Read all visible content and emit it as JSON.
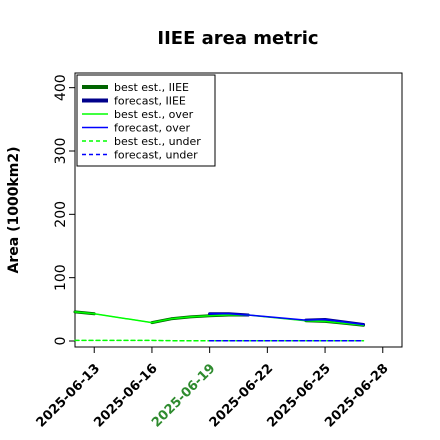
{
  "chart_data": {
    "type": "line",
    "title": "IIEE area metric",
    "ylabel": "Area (1000km2)",
    "xlabel": "",
    "ylim": [
      0,
      420
    ],
    "xlim": [
      "2025-06-12",
      "2025-06-29"
    ],
    "yticks": [
      0,
      100,
      200,
      300,
      400
    ],
    "xticks": [
      {
        "date": "2025-06-13",
        "label": "2025-06-13",
        "color": "#000000"
      },
      {
        "date": "2025-06-16",
        "label": "2025-06-16",
        "color": "#000000"
      },
      {
        "date": "2025-06-19",
        "label": "2025-06-19",
        "color": "#2e8b2e"
      },
      {
        "date": "2025-06-22",
        "label": "2025-06-22",
        "color": "#000000"
      },
      {
        "date": "2025-06-25",
        "label": "2025-06-25",
        "color": "#000000"
      },
      {
        "date": "2025-06-28",
        "label": "2025-06-28",
        "color": "#000000"
      }
    ],
    "legend_position": "top-left",
    "grid": false,
    "series": [
      {
        "name": "best est., IIEE",
        "style": "solid",
        "color": "#006400",
        "width": 3,
        "points": [
          [
            "2025-06-12",
            46
          ],
          [
            "2025-06-13",
            43
          ]
        ]
      },
      {
        "name": "best est., IIEE",
        "style": "solid",
        "color": "#006400",
        "width": 3,
        "legend": false,
        "points": [
          [
            "2025-06-16",
            29
          ],
          [
            "2025-06-17",
            35
          ],
          [
            "2025-06-18",
            38
          ],
          [
            "2025-06-19",
            40
          ],
          [
            "2025-06-20",
            41
          ],
          [
            "2025-06-21",
            41
          ]
        ]
      },
      {
        "name": "best est., IIEE",
        "style": "solid",
        "color": "#006400",
        "width": 3,
        "legend": false,
        "points": [
          [
            "2025-06-24",
            32
          ],
          [
            "2025-06-25",
            31
          ],
          [
            "2025-06-26",
            28
          ],
          [
            "2025-06-27",
            25
          ]
        ]
      },
      {
        "name": "connector",
        "style": "solid",
        "color": "#006400",
        "width": 1,
        "legend": false,
        "points": [
          [
            "2025-06-13",
            43
          ],
          [
            "2025-06-16",
            29
          ]
        ]
      },
      {
        "name": "connector",
        "style": "solid",
        "color": "#006400",
        "width": 1,
        "legend": false,
        "points": [
          [
            "2025-06-21",
            41
          ],
          [
            "2025-06-24",
            32
          ]
        ]
      },
      {
        "name": "forecast, IIEE",
        "style": "solid",
        "color": "#00008b",
        "width": 3,
        "points": [
          [
            "2025-06-19",
            43
          ],
          [
            "2025-06-20",
            43
          ],
          [
            "2025-06-21",
            41
          ]
        ]
      },
      {
        "name": "forecast, IIEE",
        "style": "solid",
        "color": "#00008b",
        "width": 3,
        "legend": false,
        "points": [
          [
            "2025-06-24",
            33
          ],
          [
            "2025-06-25",
            34
          ],
          [
            "2025-06-26",
            30
          ],
          [
            "2025-06-27",
            26
          ]
        ]
      },
      {
        "name": "best est., over",
        "style": "solid",
        "color": "#00ff00",
        "width": 1.5,
        "points": [
          [
            "2025-06-12",
            46
          ],
          [
            "2025-06-13",
            43
          ],
          [
            "2025-06-16",
            29
          ],
          [
            "2025-06-17",
            35
          ],
          [
            "2025-06-18",
            38
          ],
          [
            "2025-06-19",
            40
          ],
          [
            "2025-06-20",
            41
          ],
          [
            "2025-06-21",
            41
          ],
          [
            "2025-06-24",
            32
          ],
          [
            "2025-06-25",
            31
          ],
          [
            "2025-06-26",
            28
          ],
          [
            "2025-06-27",
            25
          ]
        ]
      },
      {
        "name": "forecast, over",
        "style": "solid",
        "color": "#0000ff",
        "width": 1.5,
        "points": [
          [
            "2025-06-19",
            43
          ],
          [
            "2025-06-20",
            43
          ],
          [
            "2025-06-21",
            41
          ],
          [
            "2025-06-24",
            33
          ],
          [
            "2025-06-25",
            34
          ],
          [
            "2025-06-26",
            30
          ],
          [
            "2025-06-27",
            26
          ]
        ]
      },
      {
        "name": "best est., under",
        "style": "dashed",
        "color": "#00ff00",
        "width": 1.5,
        "points": [
          [
            "2025-06-12",
            1
          ],
          [
            "2025-06-13",
            1
          ],
          [
            "2025-06-16",
            1
          ],
          [
            "2025-06-17",
            0.5
          ],
          [
            "2025-06-18",
            0.5
          ],
          [
            "2025-06-19",
            0.5
          ],
          [
            "2025-06-20",
            0.5
          ],
          [
            "2025-06-21",
            0.5
          ],
          [
            "2025-06-24",
            0.5
          ],
          [
            "2025-06-25",
            0.5
          ],
          [
            "2025-06-26",
            0.5
          ],
          [
            "2025-06-27",
            0.5
          ]
        ]
      },
      {
        "name": "forecast, under",
        "style": "dashed",
        "color": "#0000ff",
        "width": 1.5,
        "points": [
          [
            "2025-06-19",
            0.5
          ],
          [
            "2025-06-20",
            0.5
          ],
          [
            "2025-06-21",
            0.5
          ],
          [
            "2025-06-24",
            0.5
          ],
          [
            "2025-06-25",
            0.5
          ],
          [
            "2025-06-26",
            0.5
          ],
          [
            "2025-06-27",
            0.5
          ]
        ]
      }
    ],
    "legend": [
      {
        "label": "best est., IIEE",
        "style": "solid",
        "color": "#006400",
        "width": 4
      },
      {
        "label": "forecast, IIEE",
        "style": "solid",
        "color": "#00008b",
        "width": 4
      },
      {
        "label": "best est., over",
        "style": "solid",
        "color": "#00ff00",
        "width": 1.5
      },
      {
        "label": "forecast, over",
        "style": "solid",
        "color": "#0000ff",
        "width": 1.5
      },
      {
        "label": "best est., under",
        "style": "dashed",
        "color": "#00ff00",
        "width": 1.5
      },
      {
        "label": "forecast, under",
        "style": "dashed",
        "color": "#0000ff",
        "width": 1.5
      }
    ]
  }
}
